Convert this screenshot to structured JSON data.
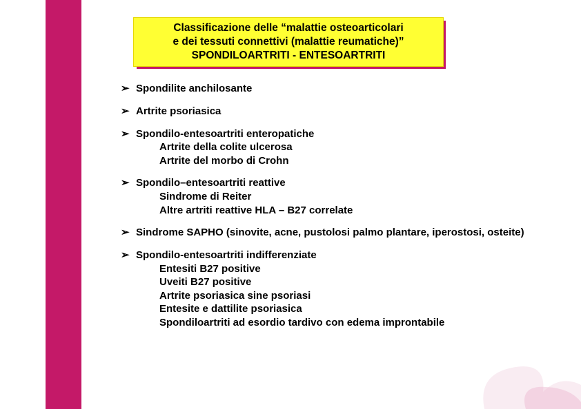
{
  "colors": {
    "sidebar": "#c41968",
    "title_bg": "#ffff33",
    "title_shadow": "#c41968",
    "text": "#000000",
    "background": "#ffffff",
    "deco_pink": "#eec9db",
    "deco_dark": "#c41968"
  },
  "title": {
    "line1": "Classificazione  delle “malattie osteoarticolari",
    "line2": "e dei tessuti connettivi (malattie reumatiche)”",
    "line3": "SPONDILOARTRITI - ENTESOARTRITI"
  },
  "items": [
    {
      "head": "Spondilite anchilosante",
      "subs": []
    },
    {
      "head": "Artrite psoriasica",
      "subs": []
    },
    {
      "head": "Spondilo-entesoartriti enteropatiche",
      "subs": [
        "Artrite della colite ulcerosa",
        "Artrite del morbo di Crohn"
      ]
    },
    {
      "head": "Spondilo–entesoartriti reattive",
      "subs": [
        "Sindrome di Reiter",
        "Altre artriti reattive HLA – B27 correlate"
      ]
    },
    {
      "head": "Sindrome SAPHO",
      "paren": "  (sinovite, acne, pustolosi palmo plantare, iperostosi, osteite)",
      "subs": []
    },
    {
      "head": "Spondilo-entesoartriti indifferenziate",
      "subs": [
        "Entesiti B27 positive",
        "Uveiti B27 positive",
        "Artrite psoriasica sine psoriasi",
        "Entesite e dattilite psoriasica",
        "Spondiloartriti ad esordio tardivo con edema improntabile"
      ]
    }
  ],
  "bullet_glyph": "➢"
}
